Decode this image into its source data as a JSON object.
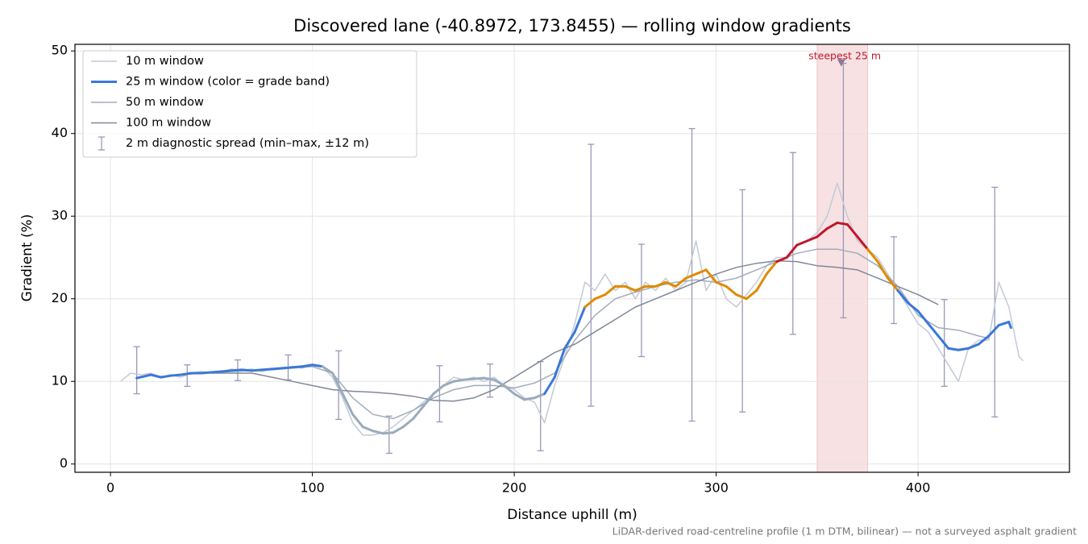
{
  "chart_data": {
    "type": "line",
    "title": "Discovered lane (-40.8972, 173.8455) — rolling window gradients",
    "x_label": "Distance uphill (m)",
    "y_label": "Gradient (%)",
    "footnote": "LiDAR-derived road-centreline profile (1 m DTM, bilinear) — not a surveyed asphalt gradient",
    "xlim": [
      -17.6,
      475
    ],
    "ylim": [
      -1,
      50.8
    ],
    "xticks": [
      0,
      100,
      200,
      300,
      400
    ],
    "yticks": [
      0,
      10,
      20,
      30,
      40,
      50
    ],
    "grid": true,
    "legend": "upper left",
    "series": [
      {
        "name": "10 m window",
        "color": "#c3cad6",
        "width": 1.5,
        "x": [
          5,
          10,
          15,
          20,
          25,
          30,
          35,
          40,
          45,
          50,
          55,
          60,
          65,
          70,
          75,
          80,
          85,
          90,
          95,
          100,
          105,
          110,
          115,
          120,
          125,
          130,
          135,
          140,
          145,
          150,
          155,
          160,
          165,
          170,
          175,
          180,
          185,
          190,
          195,
          200,
          205,
          210,
          215,
          220,
          225,
          230,
          235,
          240,
          245,
          250,
          255,
          260,
          265,
          270,
          275,
          280,
          285,
          290,
          295,
          300,
          305,
          310,
          315,
          320,
          325,
          330,
          335,
          340,
          345,
          350,
          355,
          360,
          365,
          370,
          375,
          380,
          385,
          390,
          395,
          400,
          405,
          410,
          415,
          420,
          425,
          430,
          435,
          440,
          445,
          450,
          452
        ],
        "values": [
          10,
          11,
          10.8,
          11,
          10.5,
          10.8,
          10.5,
          11,
          11.2,
          11,
          11.2,
          11.5,
          11.3,
          11.5,
          11.2,
          11.5,
          11.6,
          11.8,
          11.6,
          12,
          11.8,
          10.5,
          8,
          5,
          3.5,
          3.5,
          3.8,
          4.5,
          5.5,
          6.5,
          7.5,
          8.5,
          9.5,
          10.5,
          10.2,
          10.5,
          10,
          10.5,
          9.5,
          9,
          8,
          7.5,
          5,
          9.5,
          13,
          17,
          22,
          21,
          23,
          21,
          22,
          20,
          22,
          21,
          22.5,
          21,
          22,
          27,
          21,
          23,
          20,
          19,
          20.5,
          22,
          24,
          25,
          25,
          26.5,
          27,
          28,
          30,
          34,
          30,
          27,
          26,
          25,
          23,
          21,
          19,
          17,
          16,
          14,
          12,
          10,
          14,
          15,
          15,
          22,
          19,
          13,
          12.5
        ]
      },
      {
        "name": "25 m window (color = grade band)",
        "color": "#3a78d8",
        "width": 3,
        "x": [
          13,
          20,
          25,
          30,
          35,
          40,
          45,
          50,
          55,
          60,
          65,
          70,
          75,
          80,
          85,
          90,
          95,
          100,
          105,
          110,
          115,
          120,
          125,
          130,
          135,
          140,
          145,
          150,
          155,
          160,
          165,
          170,
          175,
          180,
          185,
          190,
          195,
          200,
          205,
          210,
          215,
          220,
          225,
          230,
          235,
          240,
          245,
          250,
          255,
          260,
          265,
          270,
          275,
          280,
          285,
          290,
          295,
          300,
          305,
          310,
          315,
          320,
          325,
          330,
          335,
          340,
          345,
          350,
          355,
          360,
          365,
          370,
          375,
          380,
          385,
          390,
          395,
          400,
          405,
          410,
          415,
          420,
          425,
          430,
          435,
          440,
          445,
          446
        ],
        "values": [
          10.4,
          10.8,
          10.5,
          10.7,
          10.8,
          11,
          11,
          11.1,
          11.2,
          11.3,
          11.4,
          11.3,
          11.4,
          11.5,
          11.6,
          11.7,
          11.8,
          12,
          11.8,
          11,
          8.5,
          6,
          4.5,
          4,
          3.7,
          3.8,
          4.5,
          5.5,
          7,
          8.5,
          9.5,
          10,
          10.2,
          10.3,
          10.4,
          10.2,
          9.5,
          8.5,
          7.8,
          8,
          8.5,
          10.5,
          14,
          16,
          19,
          20,
          20.5,
          21.5,
          21.5,
          21,
          21.5,
          21.5,
          22,
          21.5,
          22.5,
          23,
          23.5,
          22,
          21.5,
          20.5,
          20,
          21,
          23,
          24.5,
          25,
          26.5,
          27,
          27.5,
          28.5,
          29.2,
          29,
          27.5,
          26,
          24.5,
          22.5,
          21,
          19.5,
          18.5,
          17,
          15.5,
          14,
          13.8,
          14,
          14.5,
          15.5,
          16.8,
          17.2,
          16.5
        ],
        "colors": [
          "#3a78d8",
          "#3a78d8",
          "#3a78d8",
          "#3a78d8",
          "#3a78d8",
          "#3a78d8",
          "#3a78d8",
          "#3a78d8",
          "#3a78d8",
          "#3a78d8",
          "#3a78d8",
          "#3a78d8",
          "#3a78d8",
          "#3a78d8",
          "#3a78d8",
          "#3a78d8",
          "#3a78d8",
          "#3a78d8",
          "#3a78d8",
          "#9aabbd",
          "#9aabbd",
          "#9aabbd",
          "#9aabbd",
          "#9aabbd",
          "#9aabbd",
          "#9aabbd",
          "#9aabbd",
          "#9aabbd",
          "#9aabbd",
          "#9aabbd",
          "#9aabbd",
          "#9aabbd",
          "#9aabbd",
          "#9aabbd",
          "#9aabbd",
          "#9aabbd",
          "#9aabbd",
          "#9aabbd",
          "#9aabbd",
          "#9aabbd",
          "#9aabbd",
          "#3a78d8",
          "#3a78d8",
          "#3a78d8",
          "#3a78d8",
          "#e08a00",
          "#e08a00",
          "#e08a00",
          "#e08a00",
          "#e08a00",
          "#e08a00",
          "#e08a00",
          "#e08a00",
          "#e08a00",
          "#e08a00",
          "#e08a00",
          "#e08a00",
          "#e08a00",
          "#e08a00",
          "#e08a00",
          "#e08a00",
          "#e08a00",
          "#e08a00",
          "#e08a00",
          "#c0182a",
          "#c0182a",
          "#c0182a",
          "#c0182a",
          "#c0182a",
          "#c0182a",
          "#c0182a",
          "#c0182a",
          "#c0182a",
          "#e08a00",
          "#e08a00",
          "#e08a00",
          "#3a78d8",
          "#3a78d8",
          "#3a78d8",
          "#3a78d8",
          "#3a78d8",
          "#3a78d8",
          "#3a78d8",
          "#3a78d8",
          "#3a78d8",
          "#3a78d8",
          "#3a78d8",
          "#3a78d8"
        ]
      },
      {
        "name": "50 m window",
        "color": "#a2aabb",
        "width": 1.5,
        "x": [
          25,
          40,
          60,
          80,
          100,
          110,
          120,
          130,
          140,
          150,
          160,
          170,
          180,
          190,
          200,
          210,
          220,
          230,
          240,
          250,
          260,
          270,
          280,
          290,
          300,
          310,
          320,
          330,
          340,
          350,
          360,
          370,
          380,
          390,
          400,
          410,
          420,
          430,
          435
        ],
        "values": [
          10.6,
          10.9,
          11.2,
          11.4,
          11.8,
          11,
          8,
          6,
          5.5,
          6.5,
          8,
          9,
          9.5,
          9.5,
          9.2,
          9.8,
          11,
          15,
          18,
          20,
          20.8,
          21.5,
          22,
          22.3,
          22,
          22.5,
          23.5,
          24.5,
          25.5,
          26,
          26,
          25.5,
          24,
          21.5,
          18,
          16.5,
          16.2,
          15.5,
          15.2
        ]
      },
      {
        "name": "100 m window",
        "color": "#808898",
        "width": 1.5,
        "x": [
          50,
          60,
          70,
          80,
          90,
          100,
          110,
          120,
          130,
          140,
          150,
          160,
          170,
          180,
          190,
          200,
          210,
          220,
          230,
          240,
          250,
          260,
          270,
          280,
          290,
          300,
          310,
          320,
          330,
          340,
          350,
          360,
          370,
          380,
          390,
          400,
          410
        ],
        "values": [
          11,
          11,
          11,
          10.5,
          10,
          9.5,
          9,
          8.8,
          8.7,
          8.5,
          8.2,
          7.7,
          7.6,
          8,
          9,
          10.5,
          12,
          13.5,
          14.5,
          16,
          17.5,
          19,
          20,
          21,
          22,
          23,
          23.8,
          24.3,
          24.6,
          24.5,
          24,
          23.8,
          23.5,
          22.5,
          21.5,
          20.5,
          19.3
        ]
      }
    ],
    "errorbars": {
      "name": "2 m diagnostic spread (min–max, ±12 m)",
      "color": "#9a98b8",
      "x": [
        13,
        38,
        63,
        88,
        113,
        138,
        163,
        188,
        213,
        238,
        263,
        288,
        313,
        338,
        363,
        388,
        413,
        438
      ],
      "low": [
        8.5,
        9.4,
        10.1,
        10.2,
        5.4,
        1.3,
        5.1,
        8.1,
        1.6,
        7,
        13,
        5.2,
        6.3,
        15.7,
        17.7,
        17,
        9.4,
        5.7
      ],
      "high": [
        14.2,
        12,
        12.6,
        13.2,
        13.7,
        5.8,
        11.9,
        12.1,
        12.4,
        38.7,
        26.6,
        40.6,
        33.2,
        37.7,
        48.5,
        27.5,
        19.9,
        33.5
      ]
    },
    "highlight": {
      "label": "steepest 25 m",
      "x": [
        350,
        375
      ],
      "marker_x": 362,
      "marker_y": 48.5,
      "color": "#c0182a"
    }
  }
}
